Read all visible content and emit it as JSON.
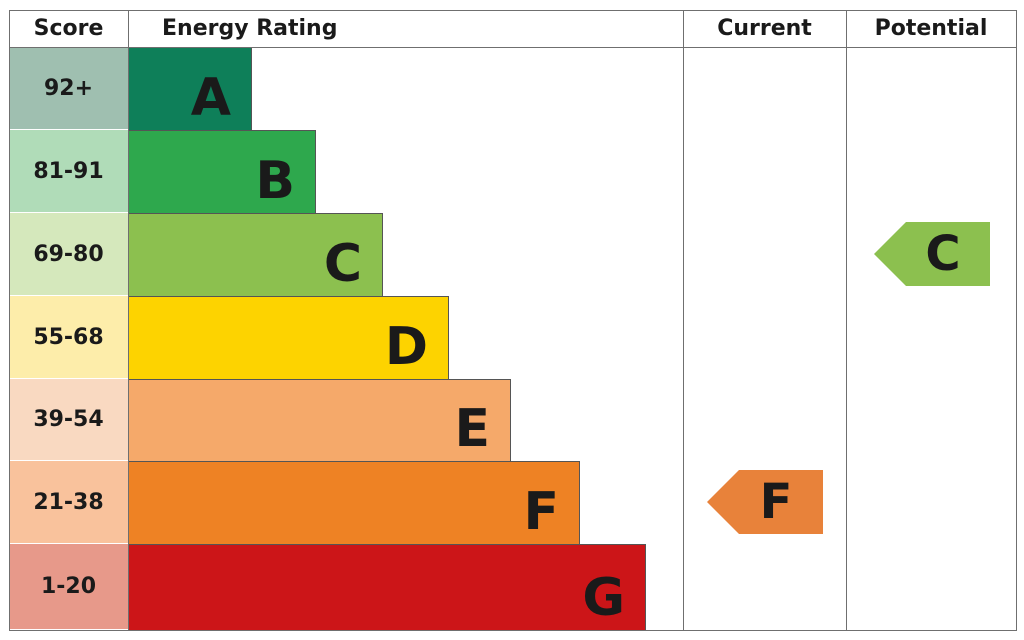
{
  "chart_data": {
    "type": "table",
    "headers": {
      "score": "Score",
      "rating": "Energy Rating",
      "current": "Current",
      "potential": "Potential"
    },
    "bands": [
      {
        "score": "92+",
        "letter": "A",
        "color": "#0e7f59",
        "score_bg": "#9fbfb0"
      },
      {
        "score": "81-91",
        "letter": "B",
        "color": "#2ea84d",
        "score_bg": "#b0dcb8"
      },
      {
        "score": "69-80",
        "letter": "C",
        "color": "#8cc04f",
        "score_bg": "#d5e8bc"
      },
      {
        "score": "55-68",
        "letter": "D",
        "color": "#fdd300",
        "score_bg": "#fdedaa"
      },
      {
        "score": "39-54",
        "letter": "E",
        "color": "#f5a96a",
        "score_bg": "#f9d9c1"
      },
      {
        "score": "21-38",
        "letter": "F",
        "color": "#ee8224",
        "score_bg": "#f9c29c"
      },
      {
        "score": "1-20",
        "letter": "G",
        "color": "#cc1518",
        "score_bg": "#e7998a"
      }
    ],
    "current": {
      "letter": "F",
      "color": "#e8823a"
    },
    "potential": {
      "letter": "C",
      "color": "#8cc04f"
    }
  }
}
